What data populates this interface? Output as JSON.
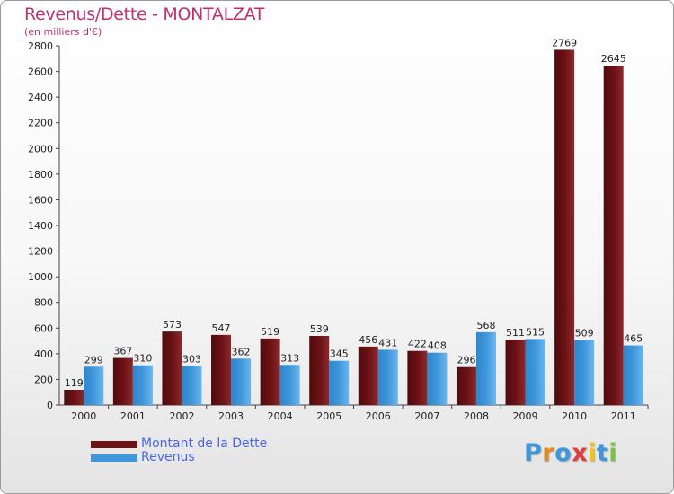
{
  "title": "Revenus/Dette - MONTALZAT",
  "subtitle": "(en milliers d'€)",
  "colors": {
    "debt": "#6e1216",
    "revenue": "#3f97da",
    "title": "#c0306a",
    "legend_text": "#4a67e0"
  },
  "chart_data": {
    "type": "bar",
    "categories": [
      "2000",
      "2001",
      "2002",
      "2003",
      "2004",
      "2005",
      "2006",
      "2007",
      "2008",
      "2009",
      "2010",
      "2011"
    ],
    "series": [
      {
        "name": "Montant de la Dette",
        "values": [
          119,
          367,
          573,
          547,
          519,
          539,
          456,
          422,
          296,
          511,
          2769,
          2645
        ]
      },
      {
        "name": "Revenus",
        "values": [
          299,
          310,
          303,
          362,
          313,
          345,
          431,
          408,
          568,
          515,
          509,
          465
        ]
      }
    ],
    "ylim": [
      0,
      2800
    ],
    "yticks": [
      0,
      200,
      400,
      600,
      800,
      1000,
      1200,
      1400,
      1600,
      1800,
      2000,
      2200,
      2400,
      2600,
      2800
    ],
    "grid": false,
    "legend": "bottom-left"
  },
  "legend": [
    {
      "label": "Montant de la Dette",
      "color": "#6e1216"
    },
    {
      "label": "Revenus",
      "color": "#3f97da"
    }
  ],
  "logo": {
    "letters": [
      "P",
      "r",
      "o",
      "x",
      "i",
      "t",
      "i"
    ],
    "colors": [
      "#3f97da",
      "#e88a1a",
      "#3f97da",
      "#e23c3c",
      "#f0c419",
      "#3f97da",
      "#7cc242"
    ]
  }
}
